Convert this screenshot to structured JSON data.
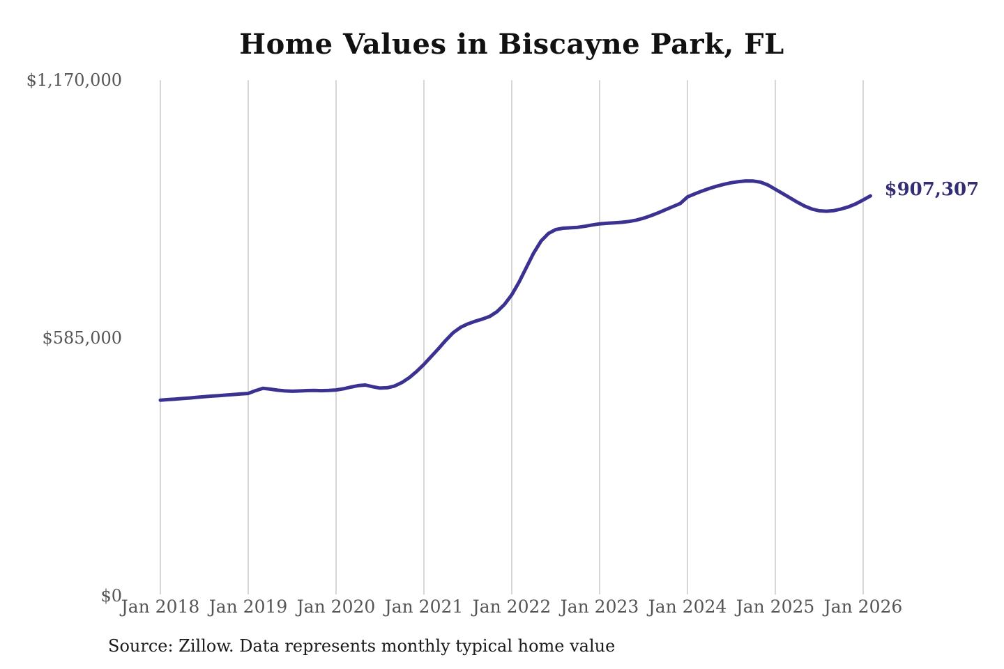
{
  "header": {
    "title": "Home Values in Biscayne Park, FL"
  },
  "annotation": {
    "current_value_label": "$907,307"
  },
  "footer": {
    "source": "Source: Zillow. Data represents monthly typical home value"
  },
  "colors": {
    "line": "#3b3191",
    "current_value_label": "#332d73",
    "gridline": "#c9c9c9",
    "tick_text": "#555555",
    "title_text": "#111111",
    "source_text": "#1a1a1a",
    "background": "#ffffff"
  },
  "chart_data": {
    "type": "line",
    "title": "Home Values in Biscayne Park, FL",
    "x_tick_labels": [
      "Jan 2018",
      "Jan 2019",
      "Jan 2020",
      "Jan 2021",
      "Jan 2022",
      "Jan 2023",
      "Jan 2024",
      "Jan 2025",
      "Jan 2026"
    ],
    "y_ticks": [
      {
        "label": "$0",
        "value": 0
      },
      {
        "label": "$585,000",
        "value": 585000
      },
      {
        "label": "$1,170,000",
        "value": 1170000
      }
    ],
    "ylim": [
      0,
      1170000
    ],
    "grid": "vertical-only",
    "legend": "none",
    "end_point": {
      "label": "$907,307",
      "value": 907307
    },
    "series": [
      {
        "name": "Monthly typical home value (USD)",
        "start": "2018-01",
        "interval": "monthly",
        "values": [
          444000,
          445200,
          446300,
          447600,
          448900,
          450400,
          451800,
          453100,
          454300,
          455500,
          456800,
          458000,
          459200,
          465500,
          470800,
          469000,
          466500,
          465000,
          464200,
          464800,
          465700,
          466100,
          465400,
          466000,
          467000,
          469800,
          473500,
          476800,
          478200,
          474500,
          471300,
          472100,
          476000,
          484000,
          495000,
          509000,
          525000,
          543000,
          561000,
          580000,
          597000,
          609000,
          617000,
          623000,
          628000,
          634000,
          645000,
          661000,
          683000,
          712000,
          745000,
          778000,
          805000,
          822000,
          831000,
          834000,
          835000,
          836000,
          838500,
          841500,
          844000,
          845200,
          846300,
          847500,
          849400,
          852300,
          856800,
          862500,
          869000,
          876000,
          883000,
          890000,
          905000,
          912000,
          918500,
          924300,
          929400,
          933800,
          937200,
          939800,
          941300,
          941000,
          938600,
          932000,
          922400,
          912800,
          902900,
          893200,
          884300,
          877600,
          873600,
          872600,
          874100,
          877600,
          882600,
          889400,
          898200,
          907307
        ]
      }
    ]
  }
}
